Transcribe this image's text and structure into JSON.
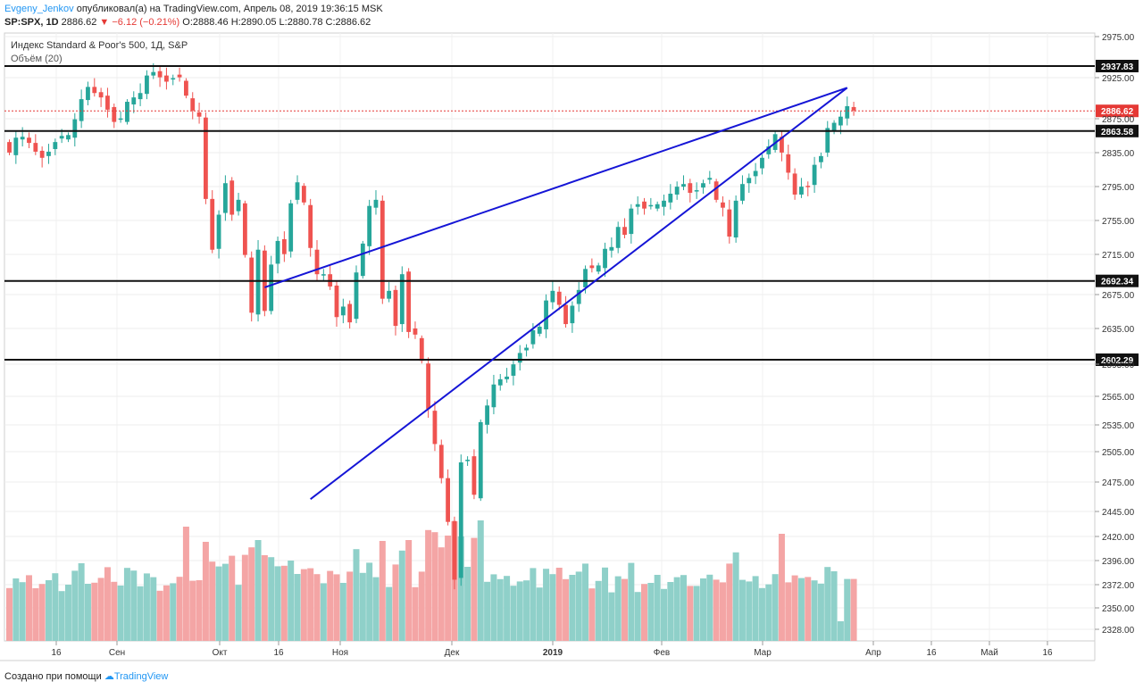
{
  "header": {
    "author": "Evgeny_Jenkov",
    "published": "опубликовал(а) на TradingView.com, Апрель 08, 2019 19:36:15 MSK",
    "symbol": "SP:SPX, 1D",
    "last": "2886.62",
    "change": "▼ −6.12 (−0.21%)",
    "ohlc": "O:2888.46 H:2890.05 L:2880.78 C:2886.62"
  },
  "footer": {
    "created": "Создано при помощи",
    "brand": "TradingView"
  },
  "colors": {
    "up": "#26a69a",
    "down": "#ef5350",
    "vol_up": "#8fd0c9",
    "vol_down": "#f4a5a5",
    "trend": "#1515d6",
    "level": "#111111",
    "last_price": "#e53935"
  },
  "chart_data": {
    "type": "candlestick",
    "title": "Индекс Standard & Poor's 500, 1Д, S&P",
    "volume_label": "Объём (20)",
    "ylim": [
      2310,
      2985
    ],
    "y_ticks": [
      "2975.00",
      "2925.00",
      "2875.00",
      "2835.00",
      "2795.00",
      "2755.00",
      "2715.00",
      "2675.00",
      "2635.00",
      "2595.00",
      "2565.00",
      "2535.00",
      "2505.00",
      "2475.00",
      "2445.00",
      "2420.00",
      "2396.00",
      "2372.00",
      "2350.00",
      "2328.00"
    ],
    "x_ticks": [
      "16",
      "Сен",
      "Окт",
      "16",
      "Ноя",
      "Дек",
      "2019",
      "Фев",
      "Мар",
      "Апр",
      "16",
      "Май",
      "16"
    ],
    "horizontal_levels": [
      {
        "value": 2937.83,
        "label": "2937.83"
      },
      {
        "value": 2863.58,
        "label": "2863.58"
      },
      {
        "value": 2692.34,
        "label": "2692.34"
      },
      {
        "value": 2602.29,
        "label": "2602.29"
      }
    ],
    "last_price": {
      "value": 2886.62,
      "label": "2886.62"
    },
    "trendlines": [
      {
        "from": [
          39,
          2685
        ],
        "to": [
          128,
          2913
        ]
      },
      {
        "from": [
          46,
          2443
        ],
        "to": [
          128,
          2913
        ]
      }
    ],
    "close": [
      2839,
      2856,
      2857,
      2850,
      2840,
      2833,
      2840,
      2851,
      2858,
      2859,
      2877,
      2900,
      2914,
      2907,
      2902,
      2888,
      2874,
      2878,
      2897,
      2902,
      2907,
      2927,
      2931,
      2925,
      2920,
      2924,
      2925,
      2904,
      2887,
      2880,
      2786,
      2728,
      2768,
      2804,
      2768,
      2785,
      2722,
      2656,
      2728,
      2658,
      2711,
      2738,
      2723,
      2781,
      2805,
      2782,
      2730,
      2700,
      2700,
      2686,
      2651,
      2663,
      2645,
      2702,
      2735,
      2778,
      2785,
      2672,
      2681,
      2641,
      2700,
      2634,
      2631,
      2601,
      2546,
      2506,
      2467,
      2417,
      2351,
      2485,
      2488,
      2448,
      2531,
      2550,
      2574,
      2580,
      2583,
      2597,
      2610,
      2616,
      2636,
      2640,
      2670,
      2681,
      2665,
      2643,
      2664,
      2682,
      2706,
      2707,
      2710,
      2729,
      2731,
      2754,
      2745,
      2775,
      2780,
      2775,
      2779,
      2780,
      2784,
      2792,
      2800,
      2803,
      2793,
      2796,
      2804,
      2810,
      2785,
      2776,
      2743,
      2784,
      2803,
      2810,
      2818,
      2833,
      2846,
      2860,
      2839,
      2816,
      2791,
      2800,
      2800,
      2825,
      2835,
      2867,
      2873,
      2880,
      2892,
      2887
    ]
  }
}
